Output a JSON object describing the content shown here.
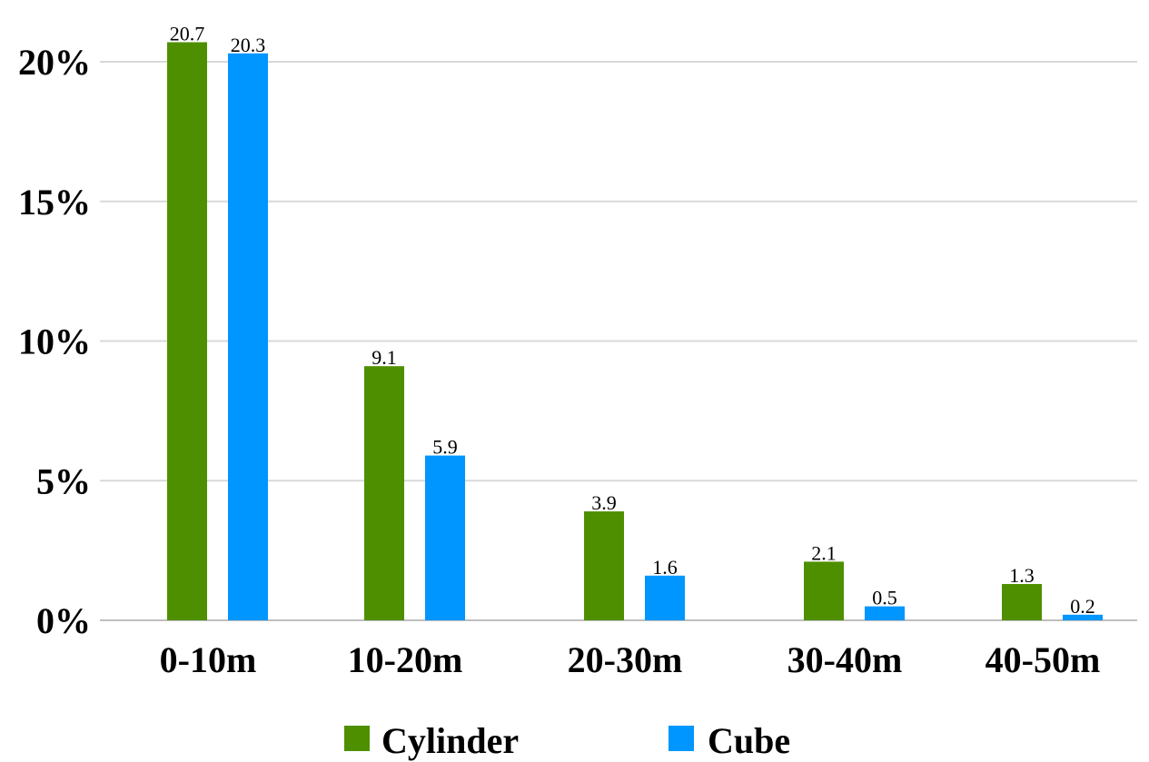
{
  "chart_data": {
    "type": "bar",
    "title": "",
    "xlabel": "",
    "ylabel": "",
    "categories": [
      "0-10m",
      "10-20m",
      "20-30m",
      "30-40m",
      "40-50m"
    ],
    "series": [
      {
        "name": "Cylinder",
        "color": "#4e8f00",
        "values": [
          20.7,
          9.1,
          3.9,
          2.1,
          1.3
        ],
        "labels": [
          "20.7",
          "9.1",
          "3.9",
          "2.1",
          "1.3"
        ]
      },
      {
        "name": "Cube",
        "color": "#0096ff",
        "values": [
          20.3,
          5.9,
          1.6,
          0.5,
          0.2
        ],
        "labels": [
          "20.3",
          "5.9",
          "1.6",
          "0.5",
          "0.2"
        ]
      }
    ],
    "ylim": [
      0,
      20
    ],
    "yticks": [
      0,
      5,
      10,
      15,
      20
    ],
    "ytick_labels": [
      "0%",
      "5%",
      "10%",
      "15%",
      "20%"
    ],
    "grid": true,
    "legend_position": "bottom-center"
  }
}
